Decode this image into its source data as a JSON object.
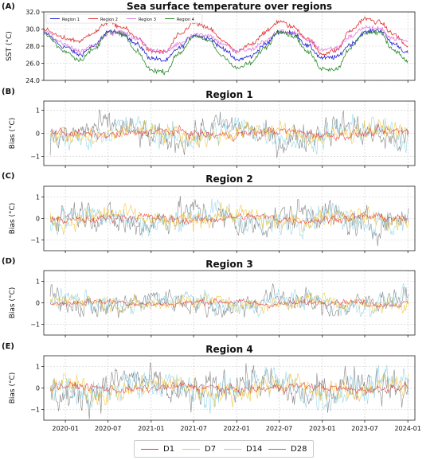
{
  "chart_data": [
    {
      "type": "line",
      "panel_letter": "(A)",
      "title": "Sea surface temperature over regions",
      "ylabel": "SST (°C)",
      "ylim": [
        24.0,
        32.0
      ],
      "yticks": [
        "24.0",
        "26.0",
        "28.0",
        "30.0",
        "32.0"
      ],
      "xlim": [
        "2019-10-01",
        "2024-01-31"
      ],
      "grid": true,
      "legend_position": "top-left",
      "x": [
        "2019-10-01",
        "2020-01-01",
        "2020-03-01",
        "2020-05-01",
        "2020-07-01",
        "2020-09-01",
        "2020-11-01",
        "2021-01-01",
        "2021-03-01",
        "2021-05-01",
        "2021-07-01",
        "2021-09-01",
        "2021-11-01",
        "2022-01-01",
        "2022-03-01",
        "2022-05-01",
        "2022-07-01",
        "2022-09-01",
        "2022-11-01",
        "2023-01-01",
        "2023-03-01",
        "2023-05-01",
        "2023-07-01",
        "2023-09-01",
        "2023-11-01",
        "2024-01-01"
      ],
      "series": [
        {
          "name": "Region 1",
          "color": "#1f1fd0",
          "values": [
            29.5,
            27.9,
            27.0,
            28.0,
            29.7,
            29.5,
            28.2,
            26.6,
            26.3,
            27.8,
            29.3,
            29.0,
            27.8,
            26.4,
            26.8,
            28.2,
            29.7,
            29.5,
            28.0,
            26.6,
            26.7,
            28.2,
            29.6,
            29.9,
            28.3,
            27.2
          ]
        },
        {
          "name": "Region 2",
          "color": "#e03030",
          "values": [
            29.9,
            28.9,
            28.6,
            29.6,
            30.8,
            30.2,
            29.0,
            27.4,
            27.3,
            29.3,
            30.7,
            30.1,
            28.7,
            27.3,
            28.2,
            29.6,
            30.9,
            30.2,
            28.8,
            27.1,
            27.5,
            29.8,
            31.2,
            30.8,
            29.4,
            28.0
          ]
        },
        {
          "name": "Region 3",
          "color": "#e07ce0",
          "values": [
            29.7,
            28.2,
            27.4,
            28.1,
            29.5,
            29.6,
            28.9,
            27.6,
            27.3,
            28.3,
            29.4,
            29.3,
            28.3,
            27.4,
            27.6,
            28.6,
            29.7,
            29.6,
            28.7,
            27.6,
            27.8,
            29.1,
            30.2,
            30.0,
            28.9,
            28.6
          ]
        },
        {
          "name": "Region 4",
          "color": "#2a8a2a",
          "values": [
            29.4,
            27.4,
            26.4,
            27.6,
            29.7,
            29.4,
            27.3,
            25.2,
            25.0,
            27.2,
            29.1,
            28.7,
            26.9,
            25.4,
            26.0,
            27.8,
            29.8,
            29.2,
            27.3,
            25.4,
            25.3,
            27.8,
            29.6,
            29.6,
            27.6,
            26.3
          ]
        }
      ]
    },
    {
      "type": "line",
      "panel_letter": "(B)",
      "title": "Region 1",
      "ylabel": "Bias (°C)",
      "ylim": [
        -1.4,
        1.4
      ],
      "yticks": [
        "-1",
        "0",
        "1"
      ],
      "grid": true,
      "series": [
        {
          "name": "D1",
          "color": "#e03a3a",
          "amplitude": 0.25
        },
        {
          "name": "D7",
          "color": "#f2c233",
          "amplitude": 0.55
        },
        {
          "name": "D14",
          "color": "#8fd3e8",
          "amplitude": 0.75
        },
        {
          "name": "D28",
          "color": "#7a7a7a",
          "amplitude": 0.85
        }
      ]
    },
    {
      "type": "line",
      "panel_letter": "(C)",
      "title": "Region 2",
      "ylabel": "Bias (°C)",
      "ylim": [
        -1.5,
        1.5
      ],
      "yticks": [
        "-1",
        "0",
        "1"
      ],
      "grid": true,
      "series": [
        {
          "name": "D1",
          "color": "#e03a3a",
          "amplitude": 0.25
        },
        {
          "name": "D7",
          "color": "#f2c233",
          "amplitude": 0.6
        },
        {
          "name": "D14",
          "color": "#8fd3e8",
          "amplitude": 0.8
        },
        {
          "name": "D28",
          "color": "#7a7a7a",
          "amplitude": 0.9
        }
      ]
    },
    {
      "type": "line",
      "panel_letter": "(D)",
      "title": "Region 3",
      "ylabel": "Bias (°C)",
      "ylim": [
        -1.5,
        1.5
      ],
      "yticks": [
        "-1",
        "0",
        "1"
      ],
      "grid": true,
      "series": [
        {
          "name": "D1",
          "color": "#e03a3a",
          "amplitude": 0.2
        },
        {
          "name": "D7",
          "color": "#f2c233",
          "amplitude": 0.45
        },
        {
          "name": "D14",
          "color": "#8fd3e8",
          "amplitude": 0.6
        },
        {
          "name": "D28",
          "color": "#7a7a7a",
          "amplitude": 0.7
        }
      ]
    },
    {
      "type": "line",
      "panel_letter": "(E)",
      "title": "Region 4",
      "ylabel": "Bias (°C)",
      "ylim": [
        -1.5,
        1.5
      ],
      "yticks": [
        "-1",
        "0",
        "1"
      ],
      "xticks": [
        "2020-01",
        "2020-07",
        "2021-01",
        "2021-07",
        "2022-01",
        "2022-07",
        "2023-01",
        "2023-07",
        "2024-01"
      ],
      "grid": true,
      "series": [
        {
          "name": "D1",
          "color": "#e03a3a",
          "amplitude": 0.25
        },
        {
          "name": "D7",
          "color": "#f2c233",
          "amplitude": 0.7
        },
        {
          "name": "D14",
          "color": "#8fd3e8",
          "amplitude": 1.0
        },
        {
          "name": "D28",
          "color": "#7a7a7a",
          "amplitude": 1.1
        }
      ]
    }
  ],
  "legend": {
    "position": "bottom-center",
    "items": [
      {
        "label": "D1",
        "color": "#e03a3a"
      },
      {
        "label": "D7",
        "color": "#f2c233"
      },
      {
        "label": "D14",
        "color": "#8fd3e8"
      },
      {
        "label": "D28",
        "color": "#7a7a7a"
      }
    ]
  }
}
